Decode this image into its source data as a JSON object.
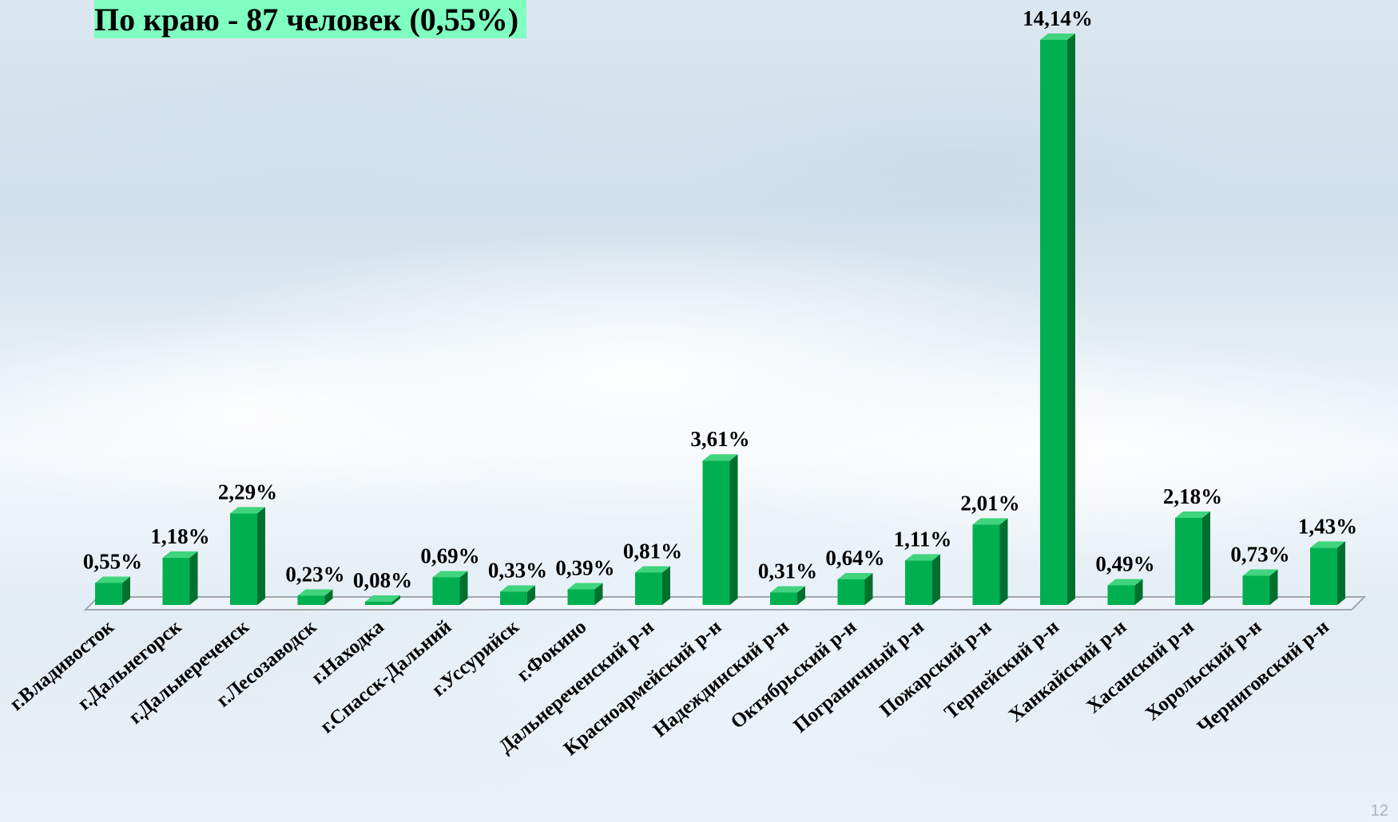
{
  "title": "По краю - 87 человек (0,55%)",
  "page_number": "12",
  "colors": {
    "bar_front": "#00b050",
    "bar_side": "#00702f",
    "bar_top": "#3fd47d",
    "axis": "#a0a8ae",
    "title_bg": "#7fffc0"
  },
  "chart_data": {
    "type": "bar",
    "title": "",
    "xlabel": "",
    "ylabel": "",
    "ylim": [
      0,
      14.14
    ],
    "grid": false,
    "categories": [
      "г.Владивосток",
      "г.Дальнегорск",
      "г.Дальнереченск",
      "г.Лесозаводск",
      "г.Находка",
      "г.Спасск-Дальний",
      "г.Уссурийск",
      "г.Фокино",
      "Дальнереченский р-н",
      "Красноармейский р-н",
      "Надеждинский р-н",
      "Октябрьский р-н",
      "Пограничный р-н",
      "Пожарский р-н",
      "Тернейский р-н",
      "Ханкайский р-н",
      "Хасанский р-н",
      "Хорольский р-н",
      "Черниговский р-н"
    ],
    "values": [
      0.55,
      1.18,
      2.29,
      0.23,
      0.08,
      0.69,
      0.33,
      0.39,
      0.81,
      3.61,
      0.31,
      0.64,
      1.11,
      2.01,
      14.14,
      0.49,
      2.18,
      0.73,
      1.43
    ],
    "data_labels": [
      "0,55%",
      "1,18%",
      "2,29%",
      "0,23%",
      "0,08%",
      "0,69%",
      "0,33%",
      "0,39%",
      "0,81%",
      "3,61%",
      "0,31%",
      "0,64%",
      "1,11%",
      "2,01%",
      "14,14%",
      "0,49%",
      "2,18%",
      "0,73%",
      "1,43%"
    ]
  }
}
